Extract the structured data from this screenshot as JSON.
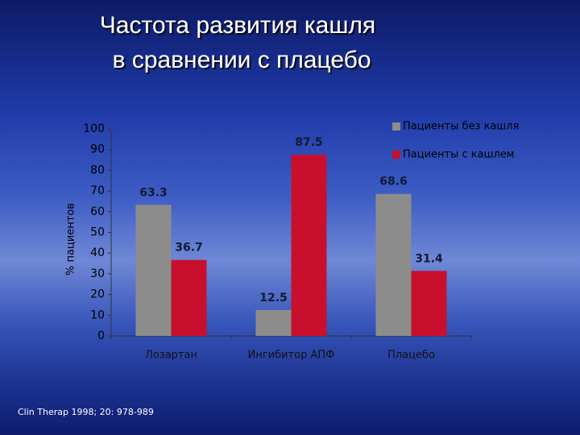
{
  "chart_data": {
    "type": "bar",
    "title": [
      "Частота развития кашля",
      "в сравнении с плацебо"
    ],
    "y_label": "% пациентов",
    "categories": [
      "Лозартан",
      "Ингибитор АПФ",
      "Плацебо"
    ],
    "series": [
      {
        "name": "Пациенты без кашля",
        "color": "#8c8c8c",
        "values": [
          63.3,
          12.5,
          68.6
        ]
      },
      {
        "name": "Пациенты с кашлем",
        "color": "#c8102e",
        "values": [
          36.7,
          87.5,
          31.4
        ]
      }
    ],
    "ylim": [
      0,
      100
    ],
    "yticks": [
      0,
      10,
      20,
      30,
      40,
      50,
      60,
      70,
      80,
      90,
      100
    ],
    "legend": "top-right",
    "source": "Clin Therap 1998; 20: 978-989"
  }
}
